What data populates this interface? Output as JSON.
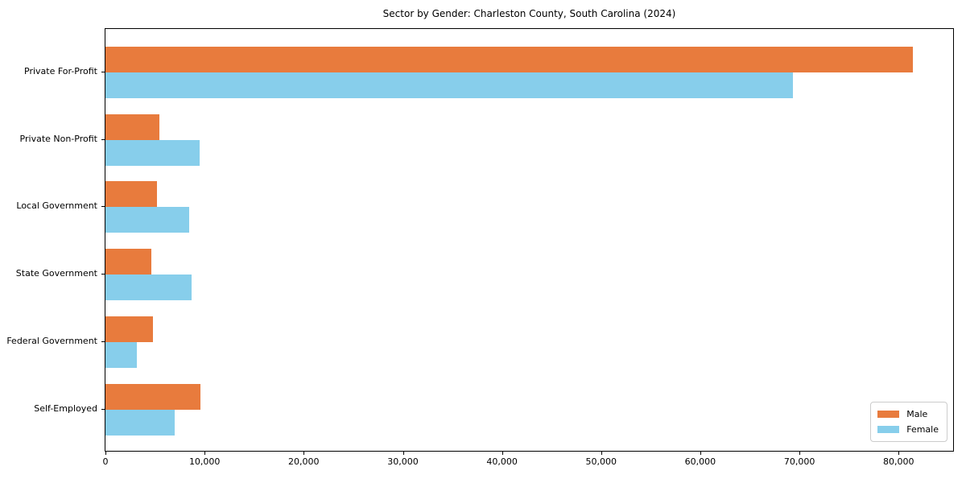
{
  "chart_data": {
    "type": "bar",
    "orientation": "horizontal",
    "title": "Sector by Gender: Charleston County, South Carolina (2024)",
    "categories": [
      "Private For-Profit",
      "Private Non-Profit",
      "Local Government",
      "State Government",
      "Federal Government",
      "Self-Employed"
    ],
    "series": [
      {
        "name": "Male",
        "color": "#E87B3D",
        "values": [
          81400,
          5400,
          5200,
          4600,
          4800,
          9600
        ]
      },
      {
        "name": "Female",
        "color": "#87CEEB",
        "values": [
          69300,
          9500,
          8400,
          8700,
          3200,
          7000
        ]
      }
    ],
    "xlabel": "",
    "ylabel": "",
    "xlim": [
      0,
      85500
    ],
    "x_ticks": [
      0,
      10000,
      20000,
      30000,
      40000,
      50000,
      60000,
      70000,
      80000
    ],
    "x_tick_labels": [
      "0",
      "10,000",
      "20,000",
      "30,000",
      "40,000",
      "50,000",
      "60,000",
      "70,000",
      "80,000"
    ],
    "grid": false,
    "legend": {
      "position": "lower right",
      "entries": [
        "Male",
        "Female"
      ]
    }
  }
}
